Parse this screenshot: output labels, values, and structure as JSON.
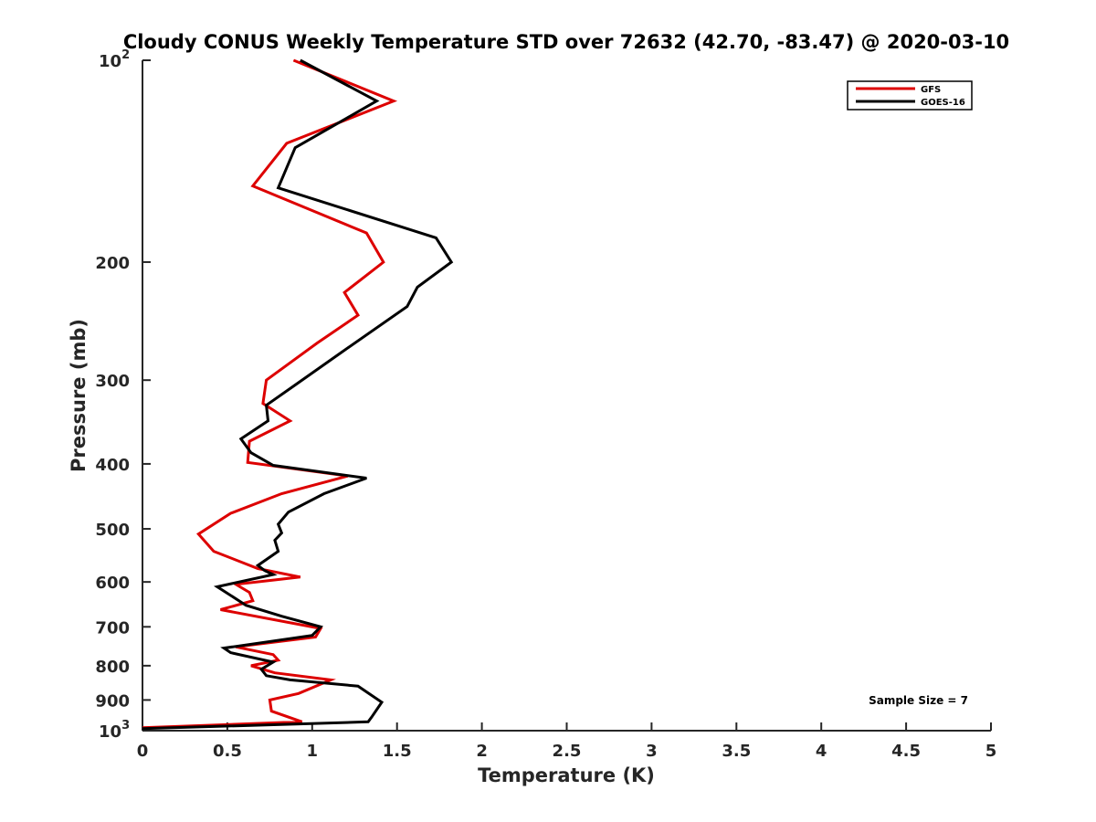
{
  "chart_data": {
    "type": "line",
    "title": "Cloudy CONUS Weekly Temperature STD over 72632 (42.70, -83.47) @ 2020-03-10",
    "xlabel": "Temperature (K)",
    "ylabel": "Pressure (mb)",
    "xlim": [
      0,
      5
    ],
    "ylim": [
      100,
      1000
    ],
    "y_scale": "log",
    "y_reversed": true,
    "grid": false,
    "legend_position": "top-right",
    "x_ticks": [
      "0",
      "0.5",
      "1",
      "1.5",
      "2",
      "2.5",
      "3",
      "3.5",
      "4",
      "4.5",
      "5"
    ],
    "y_ticks": [
      {
        "value": 100,
        "base": "10",
        "exp": "2"
      },
      {
        "value": 200,
        "label": "200"
      },
      {
        "value": 300,
        "label": "300"
      },
      {
        "value": 400,
        "label": "400"
      },
      {
        "value": 500,
        "label": "500"
      },
      {
        "value": 600,
        "label": "600"
      },
      {
        "value": 700,
        "label": "700"
      },
      {
        "value": 800,
        "label": "800"
      },
      {
        "value": 900,
        "label": "900"
      },
      {
        "value": 1000,
        "base": "10",
        "exp": "3"
      }
    ],
    "series": [
      {
        "name": "GFS",
        "color": "#dd0000",
        "points": [
          [
            0.89,
            100
          ],
          [
            1.48,
            115
          ],
          [
            0.85,
            133
          ],
          [
            0.65,
            154
          ],
          [
            1.32,
            181
          ],
          [
            1.42,
            200
          ],
          [
            1.19,
            222
          ],
          [
            1.27,
            240
          ],
          [
            1.03,
            264
          ],
          [
            0.73,
            300
          ],
          [
            0.71,
            325
          ],
          [
            0.87,
            345
          ],
          [
            0.63,
            370
          ],
          [
            0.62,
            398
          ],
          [
            1.21,
            417
          ],
          [
            0.82,
            443
          ],
          [
            0.52,
            474
          ],
          [
            0.33,
            509
          ],
          [
            0.42,
            540
          ],
          [
            0.68,
            573
          ],
          [
            0.93,
            590
          ],
          [
            0.55,
            605
          ],
          [
            0.63,
            622
          ],
          [
            0.65,
            640
          ],
          [
            0.46,
            660
          ],
          [
            1.05,
            704
          ],
          [
            1.02,
            725
          ],
          [
            0.55,
            750
          ],
          [
            0.77,
            770
          ],
          [
            0.8,
            785
          ],
          [
            0.64,
            800
          ],
          [
            0.78,
            820
          ],
          [
            1.11,
            840
          ],
          [
            0.92,
            880
          ],
          [
            0.75,
            900
          ],
          [
            0.76,
            935
          ],
          [
            0.94,
            970
          ],
          [
            0.0,
            990
          ]
        ]
      },
      {
        "name": "GOES-16",
        "color": "#000000",
        "points": [
          [
            0.93,
            100
          ],
          [
            1.38,
            115
          ],
          [
            0.9,
            135
          ],
          [
            0.8,
            155
          ],
          [
            1.73,
            184
          ],
          [
            1.82,
            200
          ],
          [
            1.62,
            218
          ],
          [
            1.56,
            233
          ],
          [
            1.17,
            273
          ],
          [
            0.9,
            305
          ],
          [
            0.73,
            327
          ],
          [
            0.74,
            345
          ],
          [
            0.58,
            367
          ],
          [
            0.64,
            385
          ],
          [
            0.77,
            402
          ],
          [
            1.32,
            420
          ],
          [
            1.07,
            443
          ],
          [
            0.86,
            472
          ],
          [
            0.8,
            492
          ],
          [
            0.82,
            507
          ],
          [
            0.78,
            520
          ],
          [
            0.8,
            540
          ],
          [
            0.68,
            567
          ],
          [
            0.72,
            577
          ],
          [
            0.77,
            585
          ],
          [
            0.44,
            610
          ],
          [
            0.61,
            650
          ],
          [
            0.82,
            675
          ],
          [
            1.05,
            700
          ],
          [
            1.0,
            721
          ],
          [
            0.48,
            753
          ],
          [
            0.52,
            765
          ],
          [
            0.77,
            790
          ],
          [
            0.7,
            810
          ],
          [
            0.73,
            828
          ],
          [
            0.87,
            840
          ],
          [
            1.27,
            858
          ],
          [
            1.41,
            907
          ],
          [
            1.35,
            955
          ],
          [
            1.33,
            970
          ],
          [
            0.0,
            993
          ]
        ]
      }
    ],
    "annotations": [
      {
        "text": "Sample Size = 7"
      }
    ]
  }
}
